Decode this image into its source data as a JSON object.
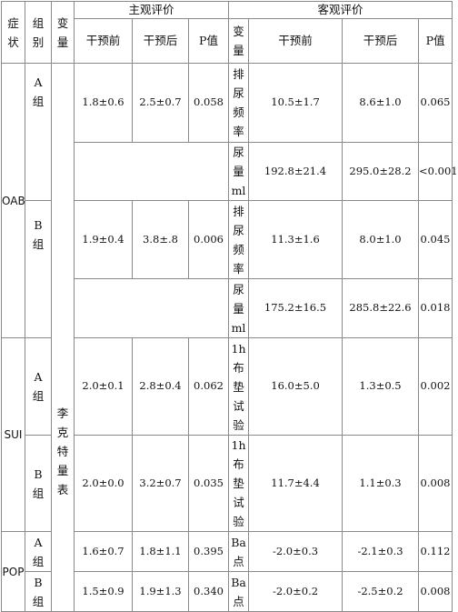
{
  "header": {
    "symptom": [
      "症",
      "状"
    ],
    "group": [
      "组",
      "别"
    ],
    "variable": [
      "变",
      "量"
    ],
    "subjective": "主观评价",
    "objective": "客观评价",
    "before": "干预前",
    "after": "干预后",
    "p_value": "P值"
  },
  "symptoms": {
    "oab": "OAB",
    "sui": "SUI",
    "pop": "POP"
  },
  "group_labels": {
    "a": [
      "A",
      "组"
    ],
    "b": [
      "B",
      "组"
    ]
  },
  "subjective_variable": [
    "李",
    "克",
    "特",
    "量",
    "表"
  ],
  "objective_variables": {
    "urination_frequency": [
      "排",
      "尿",
      "频",
      "率"
    ],
    "urine_volume": [
      "尿",
      "量",
      "ml"
    ],
    "pad_test": [
      "1h",
      "布",
      "垫",
      "试",
      "验"
    ],
    "ba_point": [
      "Ba",
      "点"
    ]
  },
  "rows": {
    "oab_a_sub": {
      "before": "1.8±0.6",
      "after": "2.5±0.7",
      "p": "0.058"
    },
    "oab_a_freq": {
      "before": "10.5±1.7",
      "after": "8.6±1.0",
      "p": "0.065"
    },
    "oab_a_vol": {
      "before": "192.8±21.4",
      "after": "295.0±28.2",
      "p": "<0.001"
    },
    "oab_b_sub": {
      "before": "1.9±0.4",
      "after": "3.8±.8",
      "p": "0.006"
    },
    "oab_b_freq": {
      "before": "11.3±1.6",
      "after": "8.0±1.0",
      "p": "0.045"
    },
    "oab_b_vol": {
      "before": "175.2±16.5",
      "after": "285.8±22.6",
      "p": "0.018"
    },
    "sui_a_sub": {
      "before": "2.0±0.1",
      "after": "2.8±0.4",
      "p": "0.062"
    },
    "sui_a_obj": {
      "before": "16.0±5.0",
      "after": "1.3±0.5",
      "p": "0.002"
    },
    "sui_b_sub": {
      "before": "2.0±0.0",
      "after": "3.2±0.7",
      "p": "0.035"
    },
    "sui_b_obj": {
      "before": "11.7±4.4",
      "after": "1.1±0.3",
      "p": "0.008"
    },
    "pop_a_sub": {
      "before": "1.6±0.7",
      "after": "1.8±1.1",
      "p": "0.395"
    },
    "pop_a_obj": {
      "before": "-2.0±0.3",
      "after": "-2.1±0.3",
      "p": "0.112"
    },
    "pop_b_sub": {
      "before": "1.5±0.9",
      "after": "1.9±1.3",
      "p": "0.340"
    },
    "pop_b_obj": {
      "before": "-2.0±0.2",
      "after": "-2.5±0.2",
      "p": "0.008"
    }
  }
}
